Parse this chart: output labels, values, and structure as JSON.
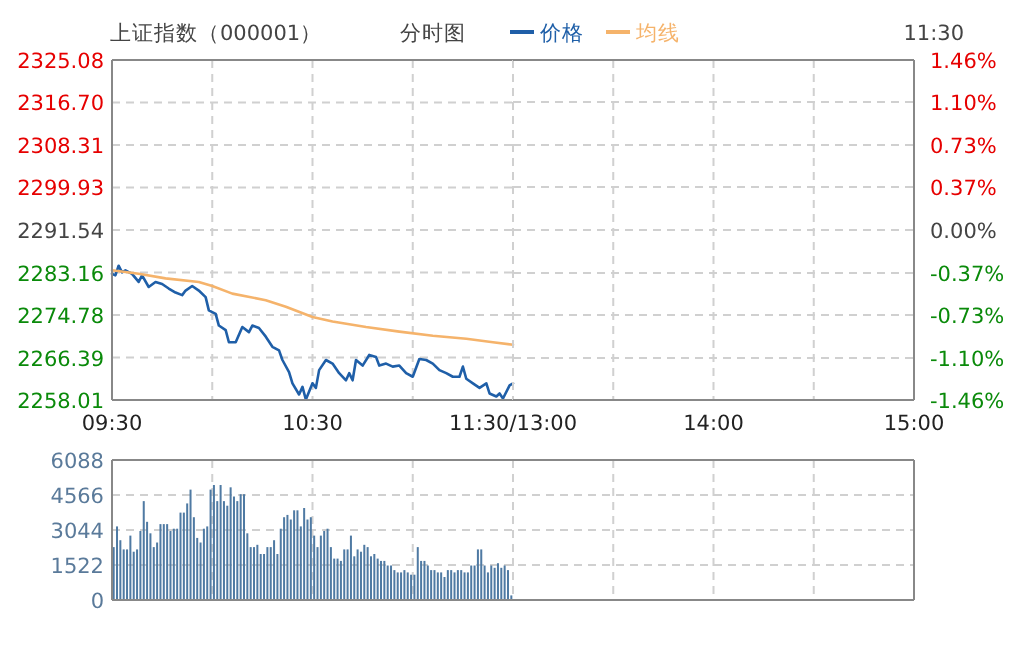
{
  "chart_data": [
    {
      "type": "line",
      "title": "上证指数（000001）",
      "subtitle": "分时图",
      "annotations": [
        "11:30"
      ],
      "legend": "top",
      "grid": true,
      "xlim": [
        9.5,
        11.5
      ],
      "xticks": [
        {
          "value": 9.5,
          "label": "09:30"
        },
        {
          "value": 10,
          "label": null
        },
        {
          "value": 10.5,
          "label": "10:30"
        },
        {
          "value": 11,
          "label": null
        },
        {
          "value": 11.5,
          "label": "11:30/13:00"
        }
      ],
      "ylim": [
        2258.01,
        2325.08
      ],
      "yticks": [
        2258.01,
        2266.39,
        2274.78,
        2283.16,
        2291.54,
        2299.93,
        2308.31,
        {
          "value": 2316.7,
          "label": "2316.70"
        },
        2325.08
      ],
      "series": [
        {
          "name": "价格",
          "color": "#1f5fa8",
          "x": [
            9.5,
            9.517,
            9.533,
            9.55,
            9.567,
            9.6,
            9.633,
            9.65,
            9.683,
            9.717,
            9.75,
            9.783,
            9.817,
            9.85,
            9.867,
            9.9,
            9.933,
            9.967,
            9.983,
            10.017,
            10.033,
            10.067,
            10.083,
            10.117,
            10.15,
            10.183,
            10.2,
            10.233,
            10.267,
            10.3,
            10.333,
            10.35,
            10.383,
            10.4,
            10.433,
            10.45,
            10.467,
            10.5,
            10.517,
            10.533,
            10.567,
            10.6,
            10.633,
            10.667,
            10.683,
            10.7,
            10.717,
            10.75,
            10.783,
            10.817,
            10.833,
            10.867,
            10.9,
            10.933,
            10.967,
            11,
            11.033,
            11.067,
            11.1,
            11.133,
            11.167,
            11.2,
            11.233,
            11.25,
            11.267,
            11.3,
            11.333,
            11.367,
            11.383,
            11.417,
            11.433,
            11.45,
            11.483,
            11.5
          ],
          "values": [
            2282.9,
            2282.6,
            2284.5,
            2283.2,
            2283.6,
            2282.9,
            2281.3,
            2282.6,
            2280.3,
            2281.3,
            2280.9,
            2280.0,
            2279.2,
            2278.7,
            2279.6,
            2280.5,
            2279.6,
            2278.3,
            2275.7,
            2275.0,
            2272.7,
            2271.8,
            2269.4,
            2269.4,
            2272.4,
            2271.4,
            2272.7,
            2272.2,
            2270.5,
            2268.5,
            2267.8,
            2265.9,
            2263.5,
            2261.3,
            2259.1,
            2260.6,
            2258.1,
            2261.3,
            2260.4,
            2263.9,
            2265.9,
            2265.2,
            2263.3,
            2261.9,
            2263.3,
            2261.9,
            2265.9,
            2264.8,
            2266.9,
            2266.5,
            2264.8,
            2265.2,
            2264.6,
            2264.8,
            2263.3,
            2262.6,
            2266.1,
            2265.9,
            2265.2,
            2263.9,
            2263.3,
            2262.6,
            2262.6,
            2264.6,
            2262.2,
            2261.3,
            2260.4,
            2261.3,
            2259.3,
            2258.7,
            2259.3,
            2258.3,
            2260.9,
            2261.3
          ]
        },
        {
          "name": "均线",
          "color": "#f5b36b",
          "x": [
            9.5,
            9.633,
            9.767,
            9.933,
            10,
            10.1,
            10.267,
            10.367,
            10.5,
            10.6,
            10.767,
            10.933,
            11.1,
            11.267,
            11.4,
            11.5
          ],
          "values": [
            2283.6,
            2282.9,
            2282.0,
            2281.3,
            2280.5,
            2279.0,
            2277.7,
            2276.4,
            2274.4,
            2273.5,
            2272.4,
            2271.5,
            2270.7,
            2270.1,
            2269.4,
            2268.9
          ]
        }
      ]
    },
    {
      "type": "line",
      "grid": true,
      "xlim": [
        13,
        15
      ],
      "xticks": [
        {
          "value": 13,
          "label": null
        },
        {
          "value": 13.5,
          "label": null
        },
        {
          "value": 14,
          "label": "14:00"
        },
        {
          "value": 14.5,
          "label": null
        },
        {
          "value": 15,
          "label": "15:00"
        }
      ],
      "y2lim": [
        -1.46,
        1.46
      ],
      "y2ticks": [
        {
          "value": -1.46,
          "label": "-1.46%"
        },
        {
          "value": -1.1,
          "label": "-1.10%"
        },
        {
          "value": -0.73,
          "label": "-0.73%"
        },
        {
          "value": -0.37,
          "label": "-0.37%"
        },
        {
          "value": 0,
          "label": "0.00%"
        },
        {
          "value": 0.37,
          "label": "0.37%"
        },
        {
          "value": 0.73,
          "label": "0.73%"
        },
        {
          "value": 1.1,
          "label": "1.10%"
        },
        {
          "value": 1.46,
          "label": "1.46%"
        }
      ]
    },
    {
      "type": "bar",
      "grid": true,
      "tick_labels": "y",
      "color": "#4f7aa3",
      "ylim": [
        0,
        6088
      ],
      "yticks": [
        0,
        1522,
        3044,
        4566,
        6088
      ],
      "categories": [
        null,
        null,
        null,
        null,
        null,
        null,
        null,
        null,
        null,
        null,
        null,
        null,
        null,
        null,
        null,
        null,
        null,
        null,
        null,
        null,
        null,
        null,
        null,
        null,
        null,
        null,
        null,
        null,
        null,
        null,
        null,
        null,
        null,
        null,
        null,
        null,
        null,
        null,
        null,
        null,
        null,
        null,
        null,
        null,
        null,
        null,
        null,
        null,
        null,
        null,
        null,
        null,
        null,
        null,
        null,
        null,
        null,
        null,
        null,
        null,
        null,
        null,
        null,
        null,
        null,
        null,
        null,
        null,
        null,
        null,
        null,
        null,
        null,
        null,
        null,
        null,
        null,
        null,
        null,
        null,
        null,
        null,
        null,
        null,
        null,
        null,
        null,
        null,
        null,
        null,
        null,
        null,
        null,
        null,
        null,
        null,
        null,
        null,
        null,
        null,
        null,
        null,
        null,
        null,
        null,
        null,
        null,
        null,
        null,
        null,
        null,
        null,
        null,
        null,
        null,
        null,
        null,
        null,
        null,
        null,
        null,
        null,
        null,
        null,
        null,
        null,
        null,
        null,
        null,
        null,
        null,
        null,
        null,
        null,
        null,
        null,
        null,
        null,
        null,
        null,
        null,
        null,
        null,
        null,
        null,
        null,
        null,
        null,
        null,
        null,
        null,
        null,
        null,
        null,
        null,
        null,
        null,
        null,
        null,
        null,
        null,
        null,
        null,
        null,
        null,
        null,
        null,
        null,
        null,
        null,
        null,
        null,
        null,
        null,
        null,
        null,
        null,
        null,
        null,
        null,
        null,
        null,
        null,
        null,
        null,
        null,
        null,
        null,
        null,
        null,
        null,
        null,
        null,
        null,
        null,
        null,
        null,
        null,
        null,
        null,
        null,
        null,
        null,
        null,
        null,
        null,
        null,
        null,
        null,
        null,
        null,
        null,
        null,
        null,
        null,
        null,
        null,
        null,
        null,
        null,
        null,
        null,
        null,
        null,
        null,
        null,
        null,
        null,
        null,
        null,
        null,
        null,
        null,
        null,
        null,
        null,
        null,
        null,
        null,
        null
      ],
      "values": [
        2300,
        3200,
        2600,
        2200,
        2200,
        2800,
        2100,
        2200,
        3000,
        4300,
        3400,
        2900,
        2300,
        2500,
        3300,
        3300,
        3300,
        3000,
        3100,
        3100,
        3800,
        3800,
        4200,
        4800,
        3600,
        2700,
        2500,
        3100,
        3200,
        4800,
        5000,
        4300,
        5000,
        4300,
        4100,
        4900,
        4500,
        4300,
        4600,
        4600,
        2900,
        2300,
        2300,
        2400,
        2000,
        2000,
        2300,
        2300,
        2600,
        2000,
        3100,
        3600,
        3700,
        3500,
        3900,
        3900,
        3200,
        4000,
        3500,
        3600,
        2800,
        2300,
        2800,
        3000,
        3100,
        2300,
        1800,
        1800,
        1700,
        2200,
        2200,
        2800,
        1900,
        2200,
        2100,
        2400,
        2300,
        1900,
        2000,
        1800,
        1700,
        1700,
        1500,
        1500,
        1300,
        1200,
        1200,
        1300,
        1200,
        1100,
        1100,
        2300,
        1700,
        1700,
        1500,
        1300,
        1300,
        1200,
        1200,
        1000,
        1300,
        1300,
        1200,
        1300,
        1300,
        1200,
        1200,
        1500,
        1500,
        2200,
        2200,
        1500,
        1200,
        1500,
        1400,
        1600,
        1400,
        1500,
        1300,
        200,
        null,
        null,
        null,
        null,
        null,
        null,
        null,
        null,
        null,
        null,
        null,
        null,
        null,
        null,
        null,
        null,
        null,
        null,
        null,
        null,
        null,
        null,
        null,
        null,
        null,
        null,
        null,
        null,
        null,
        null,
        null,
        null,
        null,
        null,
        null,
        null,
        null,
        null,
        null,
        null,
        null,
        null,
        null,
        null,
        null,
        null,
        null,
        null,
        null,
        null,
        null,
        null,
        null,
        null,
        null,
        null,
        null,
        null,
        null,
        null,
        null,
        null,
        null,
        null,
        null,
        null,
        null,
        null,
        null,
        null,
        null,
        null,
        null,
        null,
        null,
        null,
        null,
        null,
        null,
        null,
        null,
        null,
        null,
        null,
        null,
        null,
        null,
        null,
        null,
        null,
        null,
        null,
        null,
        null,
        null,
        null,
        null,
        null,
        null,
        null,
        null,
        null,
        null,
        null,
        null,
        null,
        null,
        null,
        null,
        null,
        null,
        null,
        null,
        null,
        null,
        null,
        null,
        null,
        null,
        null
      ]
    }
  ]
}
